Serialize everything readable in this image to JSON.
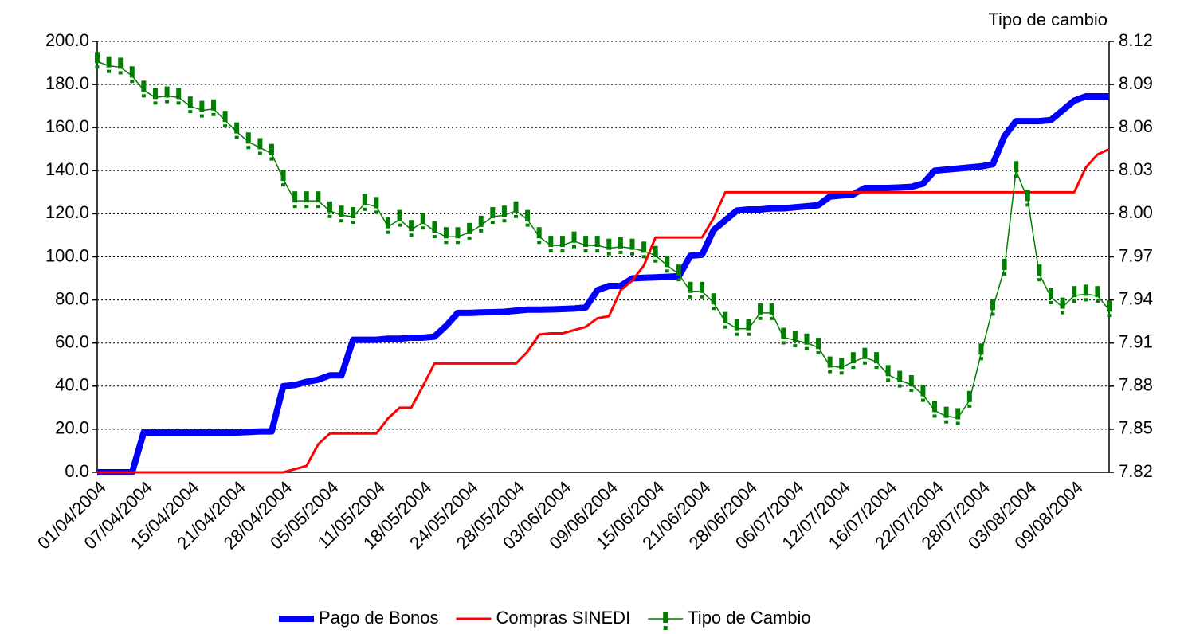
{
  "chart_data": {
    "type": "line",
    "y2_label": "Tipo de cambio",
    "categories": [
      "01/04/2004",
      null,
      null,
      null,
      "07/04/2004",
      null,
      null,
      null,
      "15/04/2004",
      null,
      null,
      null,
      "21/04/2004",
      null,
      null,
      null,
      "28/04/2004",
      null,
      null,
      null,
      "05/05/2004",
      null,
      null,
      null,
      "11/05/2004",
      null,
      null,
      null,
      "18/05/2004",
      null,
      null,
      null,
      "24/05/2004",
      null,
      null,
      null,
      "28/05/2004",
      null,
      null,
      null,
      "03/06/2004",
      null,
      null,
      null,
      "09/06/2004",
      null,
      null,
      null,
      "15/06/2004",
      null,
      null,
      null,
      "21/06/2004",
      null,
      null,
      null,
      "28/06/2004",
      null,
      null,
      null,
      "06/07/2004",
      null,
      null,
      null,
      "12/07/2004",
      null,
      null,
      null,
      "16/07/2004",
      null,
      null,
      null,
      "22/07/2004",
      null,
      null,
      null,
      "28/07/2004",
      null,
      null,
      null,
      "03/08/2004",
      null,
      null,
      null,
      "09/08/2004",
      null,
      null,
      null
    ],
    "series": [
      {
        "name": "Pago de Bonos",
        "color": "#0000ff",
        "values": [
          0,
          0,
          0,
          0,
          18.5,
          18.5,
          18.5,
          18.5,
          18.5,
          18.5,
          18.5,
          18.5,
          18.5,
          18.7,
          19,
          19,
          40,
          40.5,
          42,
          43,
          45,
          45,
          61.5,
          61.5,
          61.5,
          62,
          62,
          62.5,
          62.5,
          63,
          68,
          74,
          74,
          74.2,
          74.3,
          74.5,
          75,
          75.5,
          75.5,
          75.6,
          75.8,
          76,
          76.5,
          84.5,
          86.5,
          86.5,
          90,
          90.3,
          90.5,
          90.7,
          91,
          100.5,
          101,
          112.5,
          117,
          121.5,
          122,
          122,
          122.5,
          122.5,
          123,
          123.5,
          124,
          128,
          128.5,
          129,
          132,
          132,
          132,
          132.2,
          132.5,
          134,
          140,
          140.5,
          141,
          141.5,
          142,
          143,
          156,
          163,
          163,
          163,
          163.5,
          168,
          172.5,
          174.5,
          174.5,
          174.5
        ]
      },
      {
        "name": "Compras SINEDI",
        "color": "#ff0000",
        "values": [
          0,
          0,
          0,
          0,
          0,
          0,
          0,
          0,
          0,
          0,
          0,
          0,
          0,
          0,
          0,
          0,
          0,
          1.5,
          3,
          13,
          18,
          18,
          18,
          18,
          18,
          25,
          30,
          30,
          40,
          50.5,
          50.5,
          50.5,
          50.5,
          50.5,
          50.5,
          50.5,
          50.5,
          56,
          64,
          64.5,
          64.5,
          66,
          67.5,
          71.5,
          72.5,
          84.5,
          89,
          96,
          109,
          109,
          109,
          109,
          109,
          118,
          130,
          130,
          130,
          130,
          130,
          130,
          130,
          130,
          130,
          130,
          130,
          130,
          130,
          130,
          130,
          130,
          130,
          130,
          130,
          130,
          130,
          130,
          130,
          130,
          130,
          130,
          130,
          130,
          130,
          130,
          130,
          141.5,
          147.5,
          150
        ]
      },
      {
        "name": "Tipo de Cambio",
        "color": "#008000",
        "axis": "y2",
        "values": [
          8.106,
          8.103,
          8.102,
          8.096,
          8.086,
          8.081,
          8.082,
          8.081,
          8.075,
          8.072,
          8.073,
          8.065,
          8.057,
          8.05,
          8.046,
          8.042,
          8.024,
          8.009,
          8.009,
          8.009,
          8.002,
          7.999,
          7.998,
          8.007,
          8.005,
          7.991,
          7.996,
          7.989,
          7.994,
          7.988,
          7.984,
          7.984,
          7.987,
          7.992,
          7.998,
          7.999,
          8.002,
          7.996,
          7.984,
          7.978,
          7.978,
          7.981,
          7.978,
          7.978,
          7.976,
          7.977,
          7.976,
          7.974,
          7.971,
          7.964,
          7.958,
          7.946,
          7.946,
          7.938,
          7.925,
          7.92,
          7.92,
          7.931,
          7.931,
          7.914,
          7.912,
          7.91,
          7.907,
          7.894,
          7.893,
          7.897,
          7.9,
          7.897,
          7.888,
          7.884,
          7.881,
          7.874,
          7.863,
          7.859,
          7.858,
          7.87,
          7.903,
          7.934,
          7.962,
          8.03,
          8.01,
          7.958,
          7.942,
          7.935,
          7.943,
          7.944,
          7.943,
          7.933
        ]
      }
    ],
    "ylim": [
      0,
      200
    ],
    "yticks": [
      {
        "value": 0,
        "label": "0.0"
      },
      {
        "value": 20,
        "label": "20.0"
      },
      {
        "value": 40,
        "label": "40.0"
      },
      {
        "value": 60,
        "label": "60.0"
      },
      {
        "value": 80,
        "label": "80.0"
      },
      {
        "value": 100,
        "label": "100.0"
      },
      {
        "value": 120,
        "label": "120.0"
      },
      {
        "value": 140,
        "label": "140.0"
      },
      {
        "value": 160,
        "label": "160.0"
      },
      {
        "value": 180,
        "label": "180.0"
      },
      {
        "value": 200,
        "label": "200.0"
      }
    ],
    "y2lim": [
      7.82,
      8.12
    ],
    "y2ticks": [
      7.82,
      7.85,
      7.88,
      7.91,
      7.94,
      7.97,
      {
        "value": 8,
        "label": "8.00"
      },
      8.03,
      8.06,
      8.09,
      8.12
    ],
    "grid": true,
    "legend": "bottom"
  }
}
